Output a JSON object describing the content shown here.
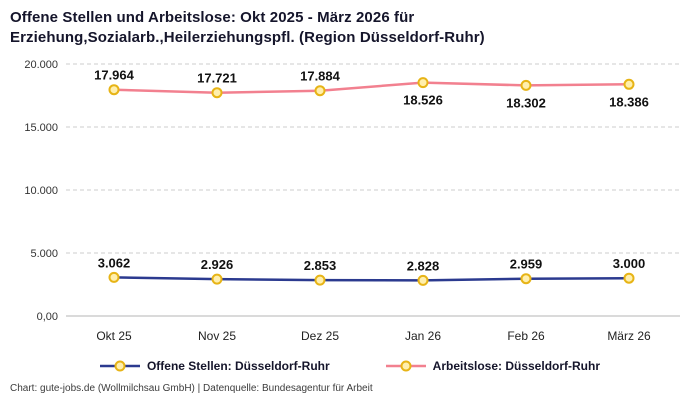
{
  "title": "Offene Stellen und Arbeitslose: Okt 2025 - März 2026 für Erziehung,Sozialarb.,Heilerziehungspfl. (Region Düsseldorf-Ruhr)",
  "footer": "Chart: gute-jobs.de (Wollmilchsau GmbH) | Datenquelle: Bundesagentur für Arbeit",
  "colors": {
    "offene": "#2b3a8f",
    "arbeitslose": "#f2808f",
    "marker_fill": "#ffefad",
    "marker_stroke": "#e7b416",
    "grid": "#cccccc",
    "zero_line": "#b5b5b5",
    "text": "#15152b"
  },
  "chart_data": {
    "type": "line",
    "title": "Offene Stellen und Arbeitslose: Okt 2025 - März 2026 für Erziehung,Sozialarb.,Heilerziehungspfl. (Region Düsseldorf-Ruhr)",
    "categories": [
      "Okt 25",
      "Nov 25",
      "Dez 25",
      "Jan 26",
      "Feb 26",
      "März 26"
    ],
    "series": [
      {
        "name": "Offene Stellen: Düsseldorf-Ruhr",
        "color": "#2b3a8f",
        "values": [
          3062,
          2926,
          2853,
          2828,
          2959,
          3000
        ],
        "labels": [
          "3.062",
          "2.926",
          "2.853",
          "2.828",
          "2.959",
          "3.000"
        ],
        "label_positions": [
          "above",
          "above",
          "above",
          "above",
          "above",
          "above"
        ]
      },
      {
        "name": "Arbeitslose: Düsseldorf-Ruhr",
        "color": "#f2808f",
        "values": [
          17964,
          17721,
          17884,
          18526,
          18302,
          18386
        ],
        "labels": [
          "17.964",
          "17.721",
          "17.884",
          "18.526",
          "18.302",
          "18.386"
        ],
        "label_positions": [
          "above",
          "above",
          "above",
          "below",
          "below",
          "below"
        ]
      }
    ],
    "xlabel": "",
    "ylabel": "",
    "ylim": [
      0,
      20000
    ],
    "yticks": [
      {
        "value": 0,
        "label": "0,00"
      },
      {
        "value": 5000,
        "label": "5.000"
      },
      {
        "value": 10000,
        "label": "10.000"
      },
      {
        "value": 15000,
        "label": "15.000"
      },
      {
        "value": 20000,
        "label": "20.000"
      }
    ],
    "grid": true,
    "legend_position": "bottom"
  },
  "legend": [
    {
      "label": "Offene Stellen: Düsseldorf-Ruhr",
      "color": "#2b3a8f"
    },
    {
      "label": "Arbeitslose: Düsseldorf-Ruhr",
      "color": "#f2808f"
    }
  ]
}
